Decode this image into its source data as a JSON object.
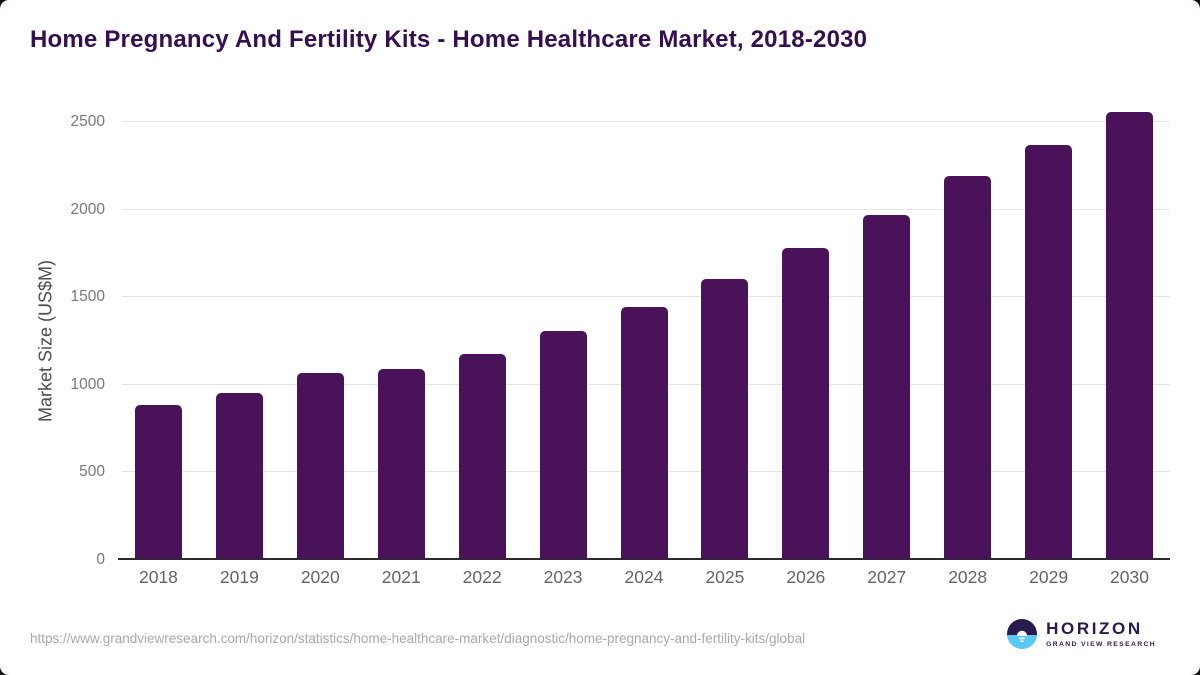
{
  "header": {
    "title": "Home Pregnancy And Fertility Kits - Home Healthcare Market, 2018-2030"
  },
  "chart_data": {
    "type": "bar",
    "title": "Home Pregnancy And Fertility Kits - Home Healthcare Market, 2018-2030",
    "categories": [
      "2018",
      "2019",
      "2020",
      "2021",
      "2022",
      "2023",
      "2024",
      "2025",
      "2026",
      "2027",
      "2028",
      "2029",
      "2030"
    ],
    "values": [
      880,
      950,
      1060,
      1085,
      1170,
      1300,
      1440,
      1600,
      1775,
      1965,
      2185,
      2365,
      2550
    ],
    "xlabel": "",
    "ylabel": "Market Size (US$M)",
    "ylim": [
      0,
      2500
    ],
    "yticks": [
      0,
      500,
      1000,
      1500,
      2000,
      2500
    ],
    "grid": true,
    "legend": false,
    "bar_color": "#4a1259"
  },
  "footer": {
    "source_url": "https://www.grandviewresearch.com/horizon/statistics/home-healthcare-market/diagnostic/home-pregnancy-and-fertility-kits/global",
    "logo": {
      "name": "HORIZON",
      "tagline": "GRAND VIEW RESEARCH"
    }
  },
  "colors": {
    "bar": "#4a1259",
    "title": "#35104f",
    "axis_line": "#2b2b2b",
    "gridline": "#e4e4e7",
    "tick_label": "#787878",
    "logo_purple": "#2a1a4e",
    "logo_blue": "#5ac8f5"
  }
}
